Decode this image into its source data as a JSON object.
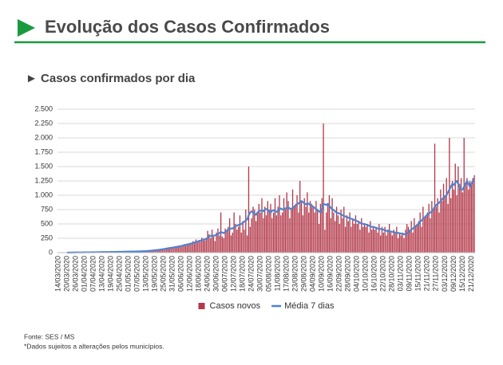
{
  "chart_data": {
    "type": "bar-line",
    "title": "Evolução dos Casos Confirmados",
    "subtitle": "► Casos confirmados por dia",
    "source": "Fonte: SES / MS",
    "note": "*Dados sujeitos a alterações pelos municípios.",
    "legend": "bottom",
    "grid": true,
    "ylim": [
      0,
      2500
    ],
    "yticks": [
      0,
      250,
      500,
      750,
      {
        "value": 1000,
        "label": "1.000"
      },
      {
        "value": 1250,
        "label": "1.250"
      },
      {
        "value": 1500,
        "label": "1.500"
      },
      {
        "value": 1750,
        "label": "1.750"
      },
      {
        "value": 2000,
        "label": "2.000"
      },
      {
        "value": 2250,
        "label": "2.250"
      },
      {
        "value": 2500,
        "label": "2.500"
      }
    ],
    "categories": [
      "14/03/2020",
      null,
      null,
      null,
      null,
      null,
      "20/03/2020",
      null,
      null,
      null,
      null,
      null,
      "26/03/2020",
      null,
      null,
      null,
      null,
      null,
      "01/04/2020",
      null,
      null,
      null,
      null,
      null,
      "07/04/2020",
      null,
      null,
      null,
      null,
      null,
      "13/04/2020",
      null,
      null,
      null,
      null,
      null,
      "19/04/2020",
      null,
      null,
      null,
      null,
      null,
      "25/04/2020",
      null,
      null,
      null,
      null,
      null,
      "01/05/2020",
      null,
      null,
      null,
      null,
      null,
      "07/05/2020",
      null,
      null,
      null,
      null,
      null,
      "13/05/2020",
      null,
      null,
      null,
      null,
      null,
      "19/05/2020",
      null,
      null,
      null,
      null,
      null,
      "25/05/2020",
      null,
      null,
      null,
      null,
      null,
      "31/05/2020",
      null,
      null,
      null,
      null,
      null,
      "06/06/2020",
      null,
      null,
      null,
      null,
      null,
      "12/06/2020",
      null,
      null,
      null,
      null,
      null,
      "18/06/2020",
      null,
      null,
      null,
      null,
      null,
      "24/06/2020",
      null,
      null,
      null,
      null,
      null,
      "30/06/2020",
      null,
      null,
      null,
      null,
      null,
      "06/07/2020",
      null,
      null,
      null,
      null,
      null,
      "12/07/2020",
      null,
      null,
      null,
      null,
      null,
      "18/07/2020",
      null,
      null,
      null,
      null,
      null,
      "24/07/2020",
      null,
      null,
      null,
      null,
      null,
      "30/07/2020",
      null,
      null,
      null,
      null,
      null,
      "05/08/2020",
      null,
      null,
      null,
      null,
      null,
      "11/08/2020",
      null,
      null,
      null,
      null,
      null,
      "17/08/2020",
      null,
      null,
      null,
      null,
      null,
      "23/08/2020",
      null,
      null,
      null,
      null,
      null,
      "29/08/2020",
      null,
      null,
      null,
      null,
      null,
      "04/09/2020",
      null,
      null,
      null,
      null,
      null,
      "10/09/2020",
      null,
      null,
      null,
      null,
      null,
      "16/09/2020",
      null,
      null,
      null,
      null,
      null,
      "22/09/2020",
      null,
      null,
      null,
      null,
      null,
      "28/09/2020",
      null,
      null,
      null,
      null,
      null,
      "04/10/2020",
      null,
      null,
      null,
      null,
      null,
      "10/10/2020",
      null,
      null,
      null,
      null,
      null,
      "16/10/2020",
      null,
      null,
      null,
      null,
      null,
      "22/10/2020",
      null,
      null,
      null,
      null,
      null,
      "28/10/2020",
      null,
      null,
      null,
      null,
      null,
      "03/11/2020",
      null,
      null,
      null,
      null,
      null,
      "09/11/2020",
      null,
      null,
      null,
      null,
      null,
      "15/11/2020",
      null,
      null,
      null,
      null,
      null,
      "21/11/2020",
      null,
      null,
      null,
      null,
      null,
      "27/11/2020",
      null,
      null,
      null,
      null,
      null,
      "03/12/2020",
      null,
      null,
      null,
      null,
      null,
      "09/12/2020",
      null,
      null,
      null,
      null,
      null,
      "15/12/2020",
      null,
      null,
      null,
      null,
      null,
      "21/12/2020",
      null,
      null
    ],
    "series": [
      {
        "name": "Casos novos",
        "kind": "bar",
        "color": "#b3394a",
        "values": [
          0,
          0,
          1,
          0,
          2,
          1,
          2,
          1,
          3,
          2,
          4,
          3,
          3,
          5,
          4,
          6,
          2,
          5,
          6,
          8,
          5,
          7,
          4,
          9,
          8,
          10,
          7,
          12,
          6,
          9,
          11,
          8,
          14,
          10,
          12,
          9,
          13,
          15,
          10,
          18,
          14,
          12,
          16,
          12,
          19,
          15,
          20,
          14,
          18,
          22,
          15,
          25,
          17,
          21,
          24,
          19,
          28,
          22,
          26,
          20,
          30,
          25,
          35,
          28,
          40,
          32,
          45,
          38,
          55,
          42,
          60,
          48,
          70,
          55,
          85,
          65,
          95,
          75,
          90,
          80,
          110,
          95,
          120,
          100,
          130,
          110,
          150,
          120,
          160,
          140,
          170,
          150,
          200,
          160,
          230,
          180,
          220,
          190,
          260,
          240,
          210,
          250,
          380,
          320,
          250,
          400,
          280,
          200,
          350,
          420,
          300,
          700,
          280,
          250,
          420,
          380,
          450,
          600,
          300,
          350,
          700,
          500,
          400,
          450,
          650,
          350,
          550,
          400,
          750,
          300,
          1500,
          450,
          600,
          800,
          750,
          550,
          700,
          850,
          700,
          950,
          600,
          800,
          650,
          900,
          750,
          850,
          600,
          700,
          950,
          650,
          800,
          1000,
          650,
          700,
          950,
          750,
          1050,
          900,
          600,
          750,
          1100,
          800,
          850,
          1000,
          700,
          1250,
          900,
          650,
          950,
          800,
          1050,
          700,
          900,
          850,
          800,
          700,
          900,
          750,
          500,
          850,
          950,
          2250,
          400,
          700,
          850,
          1000,
          600,
          950,
          700,
          550,
          800,
          650,
          500,
          750,
          600,
          800,
          450,
          650,
          550,
          700,
          450,
          600,
          500,
          650,
          500,
          550,
          400,
          600,
          450,
          500,
          450,
          500,
          350,
          550,
          400,
          450,
          400,
          450,
          350,
          500,
          300,
          450,
          350,
          450,
          300,
          400,
          500,
          350,
          300,
          400,
          350,
          450,
          250,
          350,
          300,
          350,
          250,
          400,
          500,
          450,
          400,
          550,
          350,
          600,
          450,
          500,
          550,
          700,
          450,
          800,
          600,
          650,
          700,
          850,
          600,
          900,
          750,
          1900,
          800,
          950,
          700,
          1100,
          900,
          1200,
          1000,
          1300,
          850,
          2000,
          950,
          1250,
          1100,
          1550,
          1000,
          1500,
          1200,
          1300,
          1050,
          2000,
          1200,
          1300,
          1100,
          1250,
          1200,
          1300,
          1350
        ]
      },
      {
        "name": "Média 7 dias",
        "kind": "line",
        "color": "#4f81d0",
        "values": [
          null,
          null,
          null,
          null,
          null,
          null,
          1,
          2,
          2,
          2,
          3,
          3,
          3,
          4,
          4,
          4,
          4,
          5,
          5,
          6,
          6,
          6,
          6,
          7,
          7,
          8,
          8,
          8,
          9,
          9,
          10,
          10,
          10,
          11,
          11,
          11,
          12,
          12,
          13,
          13,
          14,
          14,
          15,
          15,
          16,
          16,
          17,
          17,
          18,
          19,
          19,
          20,
          20,
          21,
          22,
          22,
          23,
          23,
          24,
          25,
          27,
          29,
          31,
          33,
          35,
          38,
          41,
          44,
          47,
          50,
          54,
          58,
          62,
          67,
          71,
          75,
          79,
          83,
          88,
          92,
          97,
          101,
          106,
          110,
          116,
          122,
          128,
          134,
          140,
          146,
          152,
          160,
          168,
          176,
          184,
          192,
          200,
          208,
          216,
          224,
          232,
          240,
          260,
          280,
          290,
          300,
          295,
          300,
          310,
          320,
          340,
          360,
          350,
          340,
          360,
          380,
          400,
          410,
          420,
          420,
          440,
          460,
          470,
          480,
          490,
          500,
          520,
          540,
          560,
          580,
          650,
          700,
          720,
          700,
          680,
          660,
          700,
          720,
          730,
          740,
          720,
          750,
          760,
          740,
          720,
          700,
          730,
          740,
          720,
          710,
          730,
          760,
          770,
          750,
          760,
          770,
          780,
          790,
          770,
          760,
          780,
          800,
          820,
          840,
          860,
          880,
          900,
          880,
          860,
          840,
          860,
          850,
          830,
          820,
          800,
          780,
          760,
          740,
          720,
          700,
          760,
          850,
          840,
          830,
          850,
          820,
          780,
          760,
          740,
          720,
          700,
          690,
          680,
          670,
          650,
          640,
          630,
          620,
          610,
          600,
          590,
          580,
          570,
          560,
          550,
          540,
          520,
          510,
          500,
          500,
          490,
          480,
          470,
          460,
          450,
          450,
          440,
          430,
          420,
          420,
          410,
          410,
          400,
          390,
          380,
          380,
          370,
          370,
          360,
          360,
          350,
          350,
          340,
          340,
          330,
          330,
          320,
          320,
          330,
          350,
          380,
          400,
          420,
          440,
          460,
          480,
          510,
          540,
          560,
          590,
          610,
          640,
          660,
          680,
          700,
          720,
          750,
          800,
          830,
          850,
          870,
          900,
          930,
          960,
          980,
          1000,
          1050,
          1100,
          1150,
          1200,
          1180,
          1220,
          1250,
          1200,
          1150,
          1100,
          1100,
          1150,
          1200,
          1250,
          1200,
          1150,
          1200,
          1250,
          1280
        ]
      }
    ]
  }
}
